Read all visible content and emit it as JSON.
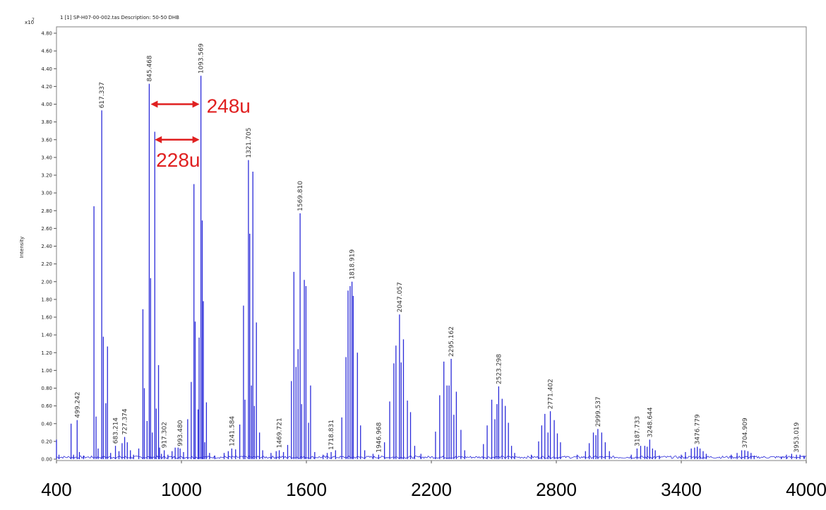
{
  "header": {
    "scale_label": "x10",
    "scale_exp": "7",
    "file_info": "1 [1] SP-H07-00-002.tas   Description: 50-50 DHB"
  },
  "colors": {
    "spectrum": "#2b2bd9",
    "annotation": "#e02020",
    "frame": "#808080"
  },
  "chart_data": {
    "type": "line",
    "style": "mass spectrum (stick plot)",
    "ylabel": "Intensity",
    "xlabel": "",
    "xlim": [
      400,
      4000
    ],
    "ylim": [
      0,
      4.8
    ],
    "ytick_values": [
      0,
      0.2,
      0.4,
      0.6,
      0.8,
      1.0,
      1.2,
      1.4,
      1.6,
      1.8,
      2.0,
      2.2,
      2.4,
      2.6,
      2.8,
      3.0,
      3.2,
      3.4,
      3.6,
      3.8,
      4.0,
      4.2,
      4.4,
      4.6,
      4.8
    ],
    "ytick_labels": [
      "0.00",
      "0.20",
      "0.40",
      "0.60",
      "0.80",
      "1.00",
      "1.20",
      "1.40",
      "1.60",
      "1.80",
      "2.00",
      "2.20",
      "2.40",
      "2.60",
      "2.80",
      "3.00",
      "3.20",
      "3.40",
      "3.60",
      "3.80",
      "4.00",
      "4.20",
      "4.40",
      "4.60",
      "4.80"
    ],
    "xtick_values": [
      400,
      1000,
      1600,
      2200,
      2800,
      3400,
      4000
    ],
    "xtick_labels": [
      "400",
      "1000",
      "1600",
      "2200",
      "2800",
      "3400",
      "4000"
    ],
    "peak_labels": [
      {
        "x": 499.242,
        "y": 0.44,
        "label": "499.242"
      },
      {
        "x": 617.337,
        "y": 3.93,
        "label": "617.337"
      },
      {
        "x": 683.214,
        "y": 0.15,
        "label": "683.214"
      },
      {
        "x": 727.374,
        "y": 0.25,
        "label": "727.374"
      },
      {
        "x": 845.468,
        "y": 4.23,
        "label": "845.468"
      },
      {
        "x": 917.302,
        "y": 0.1,
        "label": "917.302"
      },
      {
        "x": 993.48,
        "y": 0.12,
        "label": "993.480"
      },
      {
        "x": 1093.569,
        "y": 4.32,
        "label": "1093.569"
      },
      {
        "x": 1241.584,
        "y": 0.12,
        "label": "1241.584"
      },
      {
        "x": 1321.705,
        "y": 3.37,
        "label": "1321.705"
      },
      {
        "x": 1469.721,
        "y": 0.1,
        "label": "1469.721"
      },
      {
        "x": 1569.81,
        "y": 2.77,
        "label": "1569.810"
      },
      {
        "x": 1718.831,
        "y": 0.08,
        "label": "1718.831"
      },
      {
        "x": 1818.919,
        "y": 2.0,
        "label": "1818.919"
      },
      {
        "x": 1946.968,
        "y": 0.05,
        "label": "1946.968"
      },
      {
        "x": 2047.057,
        "y": 1.63,
        "label": "2047.057"
      },
      {
        "x": 2295.162,
        "y": 1.13,
        "label": "2295.162"
      },
      {
        "x": 2523.298,
        "y": 0.82,
        "label": "2523.298"
      },
      {
        "x": 2771.402,
        "y": 0.54,
        "label": "2771.402"
      },
      {
        "x": 2999.537,
        "y": 0.34,
        "label": "2999.537"
      },
      {
        "x": 3187.733,
        "y": 0.12,
        "label": "3187.733"
      },
      {
        "x": 3248.644,
        "y": 0.22,
        "label": "3248.644"
      },
      {
        "x": 3476.779,
        "y": 0.14,
        "label": "3476.779"
      },
      {
        "x": 3704.909,
        "y": 0.1,
        "label": "3704.909"
      },
      {
        "x": 3953.019,
        "y": 0.05,
        "label": "3953.019"
      }
    ],
    "peaks": [
      [
        400,
        0.22
      ],
      [
        412,
        0.05
      ],
      [
        470,
        0.4
      ],
      [
        482,
        0.05
      ],
      [
        499.242,
        0.44
      ],
      [
        510,
        0.08
      ],
      [
        530,
        0.04
      ],
      [
        580,
        2.85
      ],
      [
        590,
        0.48
      ],
      [
        600,
        0.12
      ],
      [
        617.337,
        3.93
      ],
      [
        625,
        1.38
      ],
      [
        637,
        0.63
      ],
      [
        645,
        1.27
      ],
      [
        660,
        0.07
      ],
      [
        683.214,
        0.15
      ],
      [
        700,
        0.09
      ],
      [
        715,
        0.18
      ],
      [
        727.374,
        0.25
      ],
      [
        740,
        0.19
      ],
      [
        755,
        0.1
      ],
      [
        770,
        0.05
      ],
      [
        795,
        0.12
      ],
      [
        815,
        1.69
      ],
      [
        822,
        0.8
      ],
      [
        835,
        0.43
      ],
      [
        845.468,
        4.23
      ],
      [
        852,
        2.04
      ],
      [
        860,
        0.3
      ],
      [
        872,
        3.69
      ],
      [
        879,
        0.57
      ],
      [
        890,
        1.06
      ],
      [
        895,
        0.13
      ],
      [
        904,
        0.06
      ],
      [
        917.302,
        0.1
      ],
      [
        935,
        0.05
      ],
      [
        955,
        0.09
      ],
      [
        970,
        0.13
      ],
      [
        984,
        0.13
      ],
      [
        993.48,
        0.12
      ],
      [
        1010,
        0.08
      ],
      [
        1030,
        0.45
      ],
      [
        1047,
        0.87
      ],
      [
        1060,
        3.1
      ],
      [
        1066,
        1.55
      ],
      [
        1080,
        0.56
      ],
      [
        1085,
        1.37
      ],
      [
        1093.569,
        4.32
      ],
      [
        1100,
        2.69
      ],
      [
        1105,
        1.78
      ],
      [
        1112,
        0.19
      ],
      [
        1120,
        0.64
      ],
      [
        1135,
        0.07
      ],
      [
        1160,
        0.04
      ],
      [
        1205,
        0.07
      ],
      [
        1225,
        0.09
      ],
      [
        1241.584,
        0.12
      ],
      [
        1260,
        0.11
      ],
      [
        1280,
        0.39
      ],
      [
        1298,
        1.73
      ],
      [
        1305,
        0.67
      ],
      [
        1321.705,
        3.37
      ],
      [
        1328,
        2.54
      ],
      [
        1336,
        0.83
      ],
      [
        1343,
        3.24
      ],
      [
        1350,
        0.6
      ],
      [
        1360,
        1.54
      ],
      [
        1375,
        0.3
      ],
      [
        1390,
        0.1
      ],
      [
        1430,
        0.07
      ],
      [
        1455,
        0.09
      ],
      [
        1469.721,
        0.1
      ],
      [
        1490,
        0.08
      ],
      [
        1510,
        0.16
      ],
      [
        1528,
        0.88
      ],
      [
        1540,
        2.11
      ],
      [
        1550,
        1.04
      ],
      [
        1560,
        1.24
      ],
      [
        1569.81,
        2.77
      ],
      [
        1577,
        0.62
      ],
      [
        1590,
        2.02
      ],
      [
        1598,
        1.95
      ],
      [
        1610,
        0.41
      ],
      [
        1620,
        0.83
      ],
      [
        1640,
        0.08
      ],
      [
        1680,
        0.05
      ],
      [
        1700,
        0.07
      ],
      [
        1718.831,
        0.08
      ],
      [
        1740,
        0.1
      ],
      [
        1770,
        0.47
      ],
      [
        1790,
        1.15
      ],
      [
        1800,
        1.9
      ],
      [
        1810,
        1.95
      ],
      [
        1818.919,
        2.0
      ],
      [
        1825,
        1.84
      ],
      [
        1845,
        1.2
      ],
      [
        1860,
        0.38
      ],
      [
        1880,
        0.1
      ],
      [
        1920,
        0.06
      ],
      [
        1946.968,
        0.05
      ],
      [
        1975,
        0.19
      ],
      [
        2000,
        0.65
      ],
      [
        2020,
        1.08
      ],
      [
        2030,
        1.28
      ],
      [
        2047.057,
        1.63
      ],
      [
        2055,
        1.09
      ],
      [
        2066,
        1.35
      ],
      [
        2085,
        0.66
      ],
      [
        2100,
        0.53
      ],
      [
        2120,
        0.15
      ],
      [
        2150,
        0.06
      ],
      [
        2220,
        0.31
      ],
      [
        2240,
        0.72
      ],
      [
        2260,
        1.1
      ],
      [
        2275,
        0.83
      ],
      [
        2285,
        0.83
      ],
      [
        2295.162,
        1.13
      ],
      [
        2308,
        0.5
      ],
      [
        2320,
        0.76
      ],
      [
        2342,
        0.33
      ],
      [
        2360,
        0.1
      ],
      [
        2450,
        0.17
      ],
      [
        2468,
        0.38
      ],
      [
        2490,
        0.67
      ],
      [
        2505,
        0.45
      ],
      [
        2515,
        0.62
      ],
      [
        2523.298,
        0.82
      ],
      [
        2540,
        0.68
      ],
      [
        2555,
        0.6
      ],
      [
        2570,
        0.41
      ],
      [
        2585,
        0.15
      ],
      [
        2600,
        0.07
      ],
      [
        2680,
        0.05
      ],
      [
        2715,
        0.2
      ],
      [
        2730,
        0.38
      ],
      [
        2745,
        0.51
      ],
      [
        2760,
        0.3
      ],
      [
        2771.402,
        0.54
      ],
      [
        2790,
        0.44
      ],
      [
        2805,
        0.29
      ],
      [
        2820,
        0.19
      ],
      [
        2900,
        0.05
      ],
      [
        2940,
        0.09
      ],
      [
        2958,
        0.18
      ],
      [
        2978,
        0.3
      ],
      [
        2990,
        0.27
      ],
      [
        2999.537,
        0.34
      ],
      [
        3018,
        0.3
      ],
      [
        3035,
        0.19
      ],
      [
        3055,
        0.09
      ],
      [
        3160,
        0.05
      ],
      [
        3187.733,
        0.12
      ],
      [
        3205,
        0.15
      ],
      [
        3225,
        0.15
      ],
      [
        3236,
        0.14
      ],
      [
        3248.644,
        0.22
      ],
      [
        3262,
        0.12
      ],
      [
        3275,
        0.1
      ],
      [
        3295,
        0.04
      ],
      [
        3400,
        0.05
      ],
      [
        3420,
        0.08
      ],
      [
        3448,
        0.12
      ],
      [
        3464,
        0.13
      ],
      [
        3476.779,
        0.14
      ],
      [
        3490,
        0.12
      ],
      [
        3505,
        0.09
      ],
      [
        3520,
        0.06
      ],
      [
        3640,
        0.05
      ],
      [
        3668,
        0.07
      ],
      [
        3690,
        0.1
      ],
      [
        3704.909,
        0.1
      ],
      [
        3720,
        0.09
      ],
      [
        3735,
        0.07
      ],
      [
        3750,
        0.04
      ],
      [
        3880,
        0.03
      ],
      [
        3905,
        0.05
      ],
      [
        3930,
        0.06
      ],
      [
        3953.019,
        0.05
      ],
      [
        3970,
        0.05
      ],
      [
        3990,
        0.04
      ]
    ],
    "annotations": [
      {
        "label": "248u",
        "from": 845.468,
        "to": 1093.569,
        "y": 4.0
      },
      {
        "label": "228u",
        "from": 865.0,
        "to": 1093.569,
        "y": 3.6
      }
    ]
  }
}
